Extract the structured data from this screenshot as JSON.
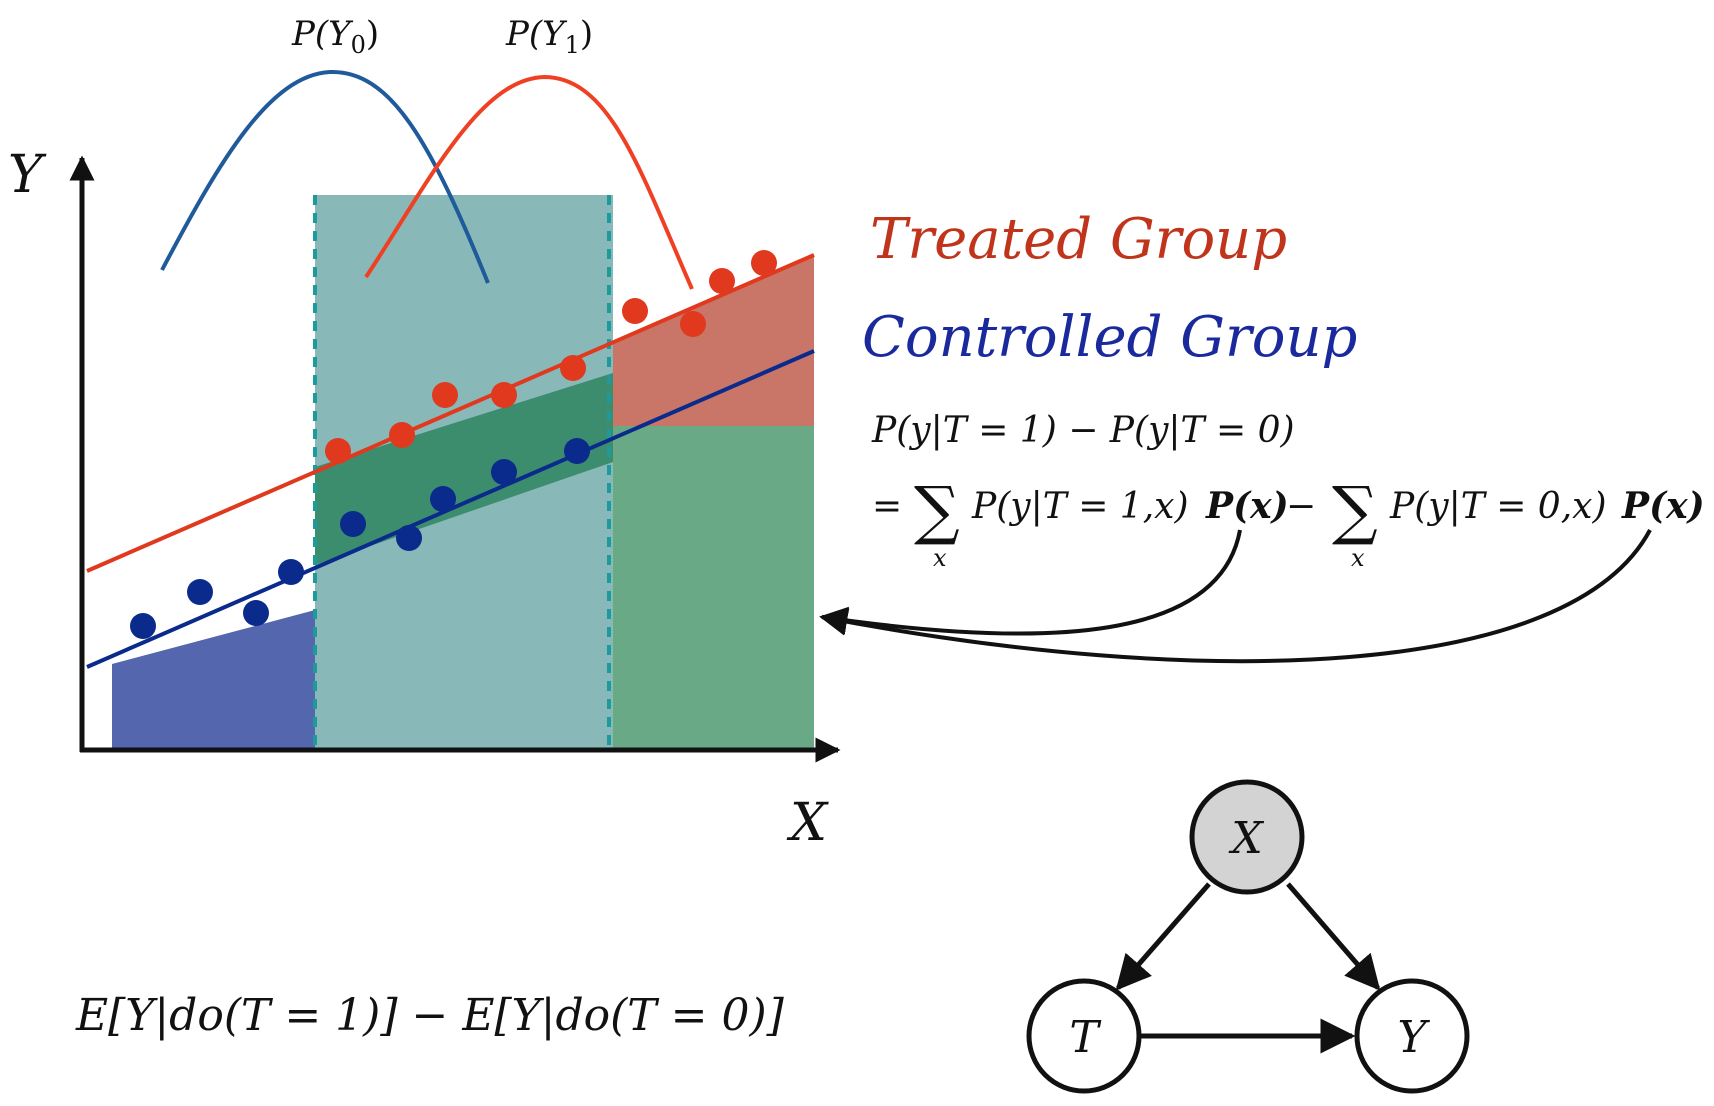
{
  "axes": {
    "y_label": "Y",
    "x_label": "X"
  },
  "distributions": {
    "p_y0": {
      "prefix": "P(",
      "var": "Y",
      "sub": "0",
      "suffix": ")"
    },
    "p_y1": {
      "prefix": "P(",
      "var": "Y",
      "sub": "1",
      "suffix": ")"
    }
  },
  "legend": {
    "treated": "Treated Group",
    "controlled": "Controlled Group"
  },
  "formula": {
    "line1": "P(y|T = 1) − P(y|T = 0)",
    "eq": "=",
    "term1": "P(y|T = 1,x)",
    "px_treated": "P(x)",
    "minus": "−",
    "term2": "P(y|T = 0,x)",
    "px_controlled": "P(x)",
    "sum_index": "x"
  },
  "bottom_formula": "E[Y|do(T = 1)] − E[Y|do(T = 0)]",
  "graph": {
    "nodes": {
      "x": "X",
      "t": "T",
      "y": "Y"
    }
  },
  "colors": {
    "treated": "#e0391e",
    "treated_text": "#c0341c",
    "controlled": "#0a2a8c",
    "controlled_text": "#1a2a9c",
    "dist_blue": "#1f5a9a",
    "dist_red": "#ef4023",
    "region_left": "#5466ad",
    "region_mid": "#89b8b9",
    "region_mid_dark": "#3c8c6e",
    "region_right_top": "#c97668",
    "region_right_bottom": "#6aa985",
    "node_x_fill": "#d3d3d3"
  }
}
